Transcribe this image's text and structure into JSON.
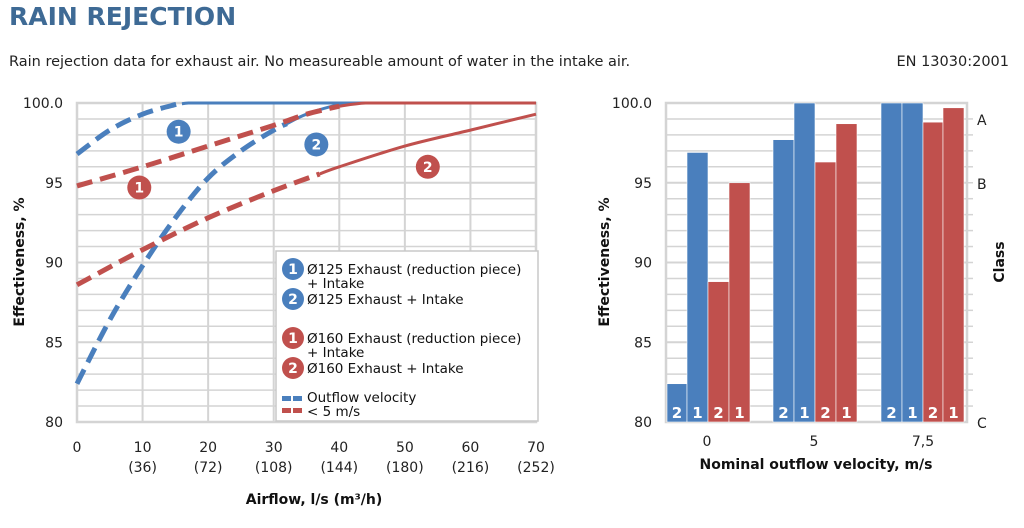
{
  "header": {
    "title": "RAIN REJECTION",
    "subtitle": "Rain rejection data for exhaust air. No measureable amount of water in the intake air.",
    "standard": "EN 13030:2001"
  },
  "colors": {
    "blue": "#4a7fbd",
    "red": "#c0504d",
    "grid": "#d4d4d4",
    "title": "#3e6a95"
  },
  "chart_data": [
    {
      "type": "line",
      "xlabel": "Airflow, l/s (m³/h)",
      "ylabel": "Effectiveness, %",
      "xlim": [
        0,
        70
      ],
      "ylim": [
        80,
        100
      ],
      "x_ticks": [
        0,
        10,
        20,
        30,
        40,
        50,
        60,
        70
      ],
      "x_tick_labels": [
        "0",
        "10",
        "20",
        "30",
        "40",
        "50",
        "60",
        "70"
      ],
      "x_tick_sublabels": [
        "",
        "(36)",
        "(72)",
        "(108)",
        "(144)",
        "(180)",
        "(216)",
        "(252)"
      ],
      "y_ticks": [
        80,
        85,
        90,
        95,
        100
      ],
      "y_tick_labels": [
        "80",
        "85",
        "90",
        "95",
        "100.0"
      ],
      "grid": true,
      "series": [
        {
          "name": "Ø125 Exhaust (reduction piece) + Intake",
          "badge": "1",
          "color": "blue",
          "x": [
            0,
            5,
            10,
            15,
            17,
            20,
            30,
            40,
            50,
            60,
            70
          ],
          "y": [
            96.8,
            98.3,
            99.3,
            99.9,
            100,
            100,
            100,
            100,
            100,
            100,
            100
          ],
          "dashed_until_x": 16
        },
        {
          "name": "Ø125 Exhaust + Intake",
          "badge": "2",
          "color": "blue",
          "x": [
            0,
            5,
            10,
            15,
            20,
            25,
            30,
            35,
            40,
            43,
            50,
            60,
            70
          ],
          "y": [
            82.4,
            86.4,
            89.8,
            92.8,
            95.3,
            97.0,
            98.3,
            99.3,
            99.9,
            100,
            100,
            100,
            100
          ],
          "dashed_until_x": 32
        },
        {
          "name": "Ø160 Exhaust (reduction piece) + Intake",
          "badge": "1",
          "color": "red",
          "x": [
            0,
            10,
            20,
            30,
            35,
            40,
            44,
            50,
            60,
            70
          ],
          "y": [
            94.8,
            96.0,
            97.3,
            98.6,
            99.3,
            99.8,
            100,
            100,
            100,
            100
          ],
          "dashed_until_x": 40
        },
        {
          "name": "Ø160 Exhaust + Intake",
          "badge": "2",
          "color": "red",
          "x": [
            0,
            10,
            20,
            30,
            40,
            50,
            60,
            70
          ],
          "y": [
            88.6,
            90.8,
            92.8,
            94.5,
            96.0,
            97.3,
            98.3,
            99.3
          ],
          "dashed_until_x": 37
        }
      ],
      "curve_badges": [
        {
          "series": 0,
          "x": 15.5,
          "y": 98.2
        },
        {
          "series": 1,
          "x": 36.5,
          "y": 97.4
        },
        {
          "series": 2,
          "x": 9.5,
          "y": 94.7
        },
        {
          "series": 3,
          "x": 53.5,
          "y": 96.0
        }
      ],
      "legend": {
        "placement": "lower-right",
        "items": [
          {
            "badge": "1",
            "color": "blue",
            "lines": [
              "Ø125 Exhaust (reduction piece)",
              "+ Intake"
            ]
          },
          {
            "badge": "2",
            "color": "blue",
            "lines": [
              "Ø125 Exhaust + Intake"
            ]
          },
          {
            "badge": "1",
            "color": "red",
            "lines": [
              "Ø160 Exhaust (reduction piece)",
              "+ Intake"
            ]
          },
          {
            "badge": "2",
            "color": "red",
            "lines": [
              "Ø160 Exhaust + Intake"
            ]
          }
        ],
        "dash_note": [
          "Outflow velocity",
          "< 5 m/s"
        ]
      }
    },
    {
      "type": "bar",
      "xlabel": "Nominal outflow velocity, m/s",
      "ylabel": "Effectiveness, %",
      "right_ylabel": "Class",
      "ylim": [
        80,
        100
      ],
      "y_ticks": [
        80,
        85,
        90,
        95,
        100
      ],
      "y_tick_labels": [
        "80",
        "85",
        "90",
        "95",
        "100.0"
      ],
      "class_ticks": [
        {
          "label": "A",
          "value": 99.0
        },
        {
          "label": "B",
          "value": 95.0
        },
        {
          "label": "C",
          "value": 80.0
        }
      ],
      "categories": [
        "0",
        "5",
        "7,5"
      ],
      "grid": true,
      "series": [
        {
          "name": "Ø125 Exhaust + Intake",
          "label": "2",
          "color": "blue",
          "values": [
            82.4,
            97.7,
            100.0
          ]
        },
        {
          "name": "Ø125 Exhaust (reduction piece) + Intake",
          "label": "1",
          "color": "blue",
          "values": [
            96.9,
            100.0,
            100.0
          ]
        },
        {
          "name": "Ø160 Exhaust + Intake",
          "label": "2",
          "color": "red",
          "values": [
            88.8,
            96.3,
            98.8
          ]
        },
        {
          "name": "Ø160 Exhaust (reduction piece) + Intake",
          "label": "1",
          "color": "red",
          "values": [
            95.0,
            98.7,
            99.7
          ]
        }
      ]
    }
  ]
}
